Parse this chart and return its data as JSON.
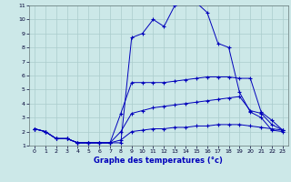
{
  "background_color": "#cce8e8",
  "grid_color": "#aacccc",
  "line_color": "#0000bb",
  "xlabel": "Graphe des temperatures (°c)",
  "xlim": [
    -0.5,
    23.5
  ],
  "ylim": [
    1,
    11
  ],
  "xticks": [
    0,
    1,
    2,
    3,
    4,
    5,
    6,
    7,
    8,
    9,
    10,
    11,
    12,
    13,
    14,
    15,
    16,
    17,
    18,
    19,
    20,
    21,
    22,
    23
  ],
  "yticks": [
    1,
    2,
    3,
    4,
    5,
    6,
    7,
    8,
    9,
    10,
    11
  ],
  "series": [
    {
      "x": [
        0,
        1,
        2,
        3,
        4,
        5,
        6,
        7,
        8,
        9,
        10,
        11,
        12,
        13,
        14,
        15,
        16,
        17,
        18,
        19,
        20,
        21,
        22,
        23
      ],
      "y": [
        2.2,
        2.0,
        1.5,
        1.5,
        1.2,
        1.2,
        1.2,
        1.2,
        1.2,
        8.7,
        9.0,
        10.0,
        9.5,
        11.0,
        11.2,
        11.2,
        10.5,
        8.3,
        8.0,
        4.8,
        3.4,
        3.0,
        2.1,
        2.0
      ]
    },
    {
      "x": [
        0,
        1,
        2,
        3,
        4,
        5,
        6,
        7,
        8,
        9,
        10,
        11,
        12,
        13,
        14,
        15,
        16,
        17,
        18,
        19,
        20,
        21,
        22,
        23
      ],
      "y": [
        2.2,
        2.0,
        1.5,
        1.5,
        1.2,
        1.2,
        1.2,
        1.2,
        3.3,
        5.5,
        5.5,
        5.5,
        5.5,
        5.6,
        5.7,
        5.8,
        5.9,
        5.9,
        5.9,
        5.8,
        5.8,
        3.4,
        2.8,
        2.1
      ]
    },
    {
      "x": [
        0,
        1,
        2,
        3,
        4,
        5,
        6,
        7,
        8,
        9,
        10,
        11,
        12,
        13,
        14,
        15,
        16,
        17,
        18,
        19,
        20,
        21,
        22,
        23
      ],
      "y": [
        2.2,
        2.0,
        1.5,
        1.5,
        1.2,
        1.2,
        1.2,
        1.2,
        2.0,
        3.3,
        3.5,
        3.7,
        3.8,
        3.9,
        4.0,
        4.1,
        4.2,
        4.3,
        4.4,
        4.5,
        3.5,
        3.3,
        2.5,
        2.1
      ]
    },
    {
      "x": [
        0,
        1,
        2,
        3,
        4,
        5,
        6,
        7,
        8,
        9,
        10,
        11,
        12,
        13,
        14,
        15,
        16,
        17,
        18,
        19,
        20,
        21,
        22,
        23
      ],
      "y": [
        2.2,
        2.0,
        1.5,
        1.5,
        1.2,
        1.2,
        1.2,
        1.2,
        1.4,
        2.0,
        2.1,
        2.2,
        2.2,
        2.3,
        2.3,
        2.4,
        2.4,
        2.5,
        2.5,
        2.5,
        2.4,
        2.3,
        2.2,
        2.1
      ]
    }
  ]
}
